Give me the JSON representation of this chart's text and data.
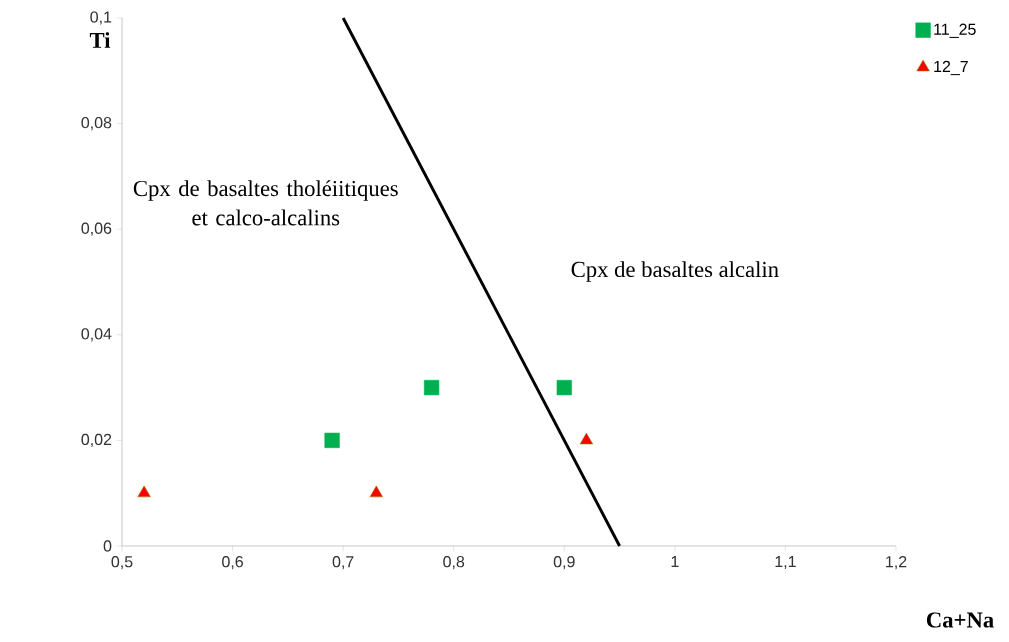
{
  "chart_data": {
    "type": "scatter",
    "xlabel": "Ca+Na",
    "ylabel": "Ti",
    "xlim": [
      0.5,
      1.2
    ],
    "ylim": [
      0,
      0.1
    ],
    "xticks": [
      {
        "value": 0.5,
        "label": "0,5"
      },
      {
        "value": 0.6,
        "label": "0,6"
      },
      {
        "value": 0.7,
        "label": "0,7"
      },
      {
        "value": 0.8,
        "label": "0,8"
      },
      {
        "value": 0.9,
        "label": "0,9"
      },
      {
        "value": 1,
        "label": "1"
      },
      {
        "value": 1.1,
        "label": "1,1"
      },
      {
        "value": 1.2,
        "label": "1,2"
      }
    ],
    "yticks": [
      0,
      {
        "value": 0.02,
        "label": "0,02"
      },
      {
        "value": 0.04,
        "label": "0,04"
      },
      {
        "value": 0.06,
        "label": "0,06"
      },
      {
        "value": 0.08,
        "label": "0,08"
      },
      {
        "value": 0.1,
        "label": "0,1"
      }
    ],
    "legend": "top right",
    "grid": false,
    "series": [
      {
        "name": "11_25",
        "color": "#00b050",
        "marker": "square",
        "x": [
          0.69,
          0.78,
          0.9
        ],
        "values": [
          0.02,
          0.03,
          0.03
        ]
      },
      {
        "name": "12_7",
        "color": "#ff0000",
        "marker": "triangle",
        "x": [
          0.52,
          0.73,
          0.92
        ],
        "values": [
          0.01,
          0.01,
          0.02
        ]
      },
      {
        "type": "line",
        "color": "#000000",
        "marker": "none",
        "x": [
          0.7,
          0.95
        ],
        "values": [
          0.1,
          0
        ]
      }
    ],
    "annotations": [
      "Cpx de basaltes tholéiitiques et calco-alcalins",
      "Cpx de basaltes alcalin"
    ]
  }
}
